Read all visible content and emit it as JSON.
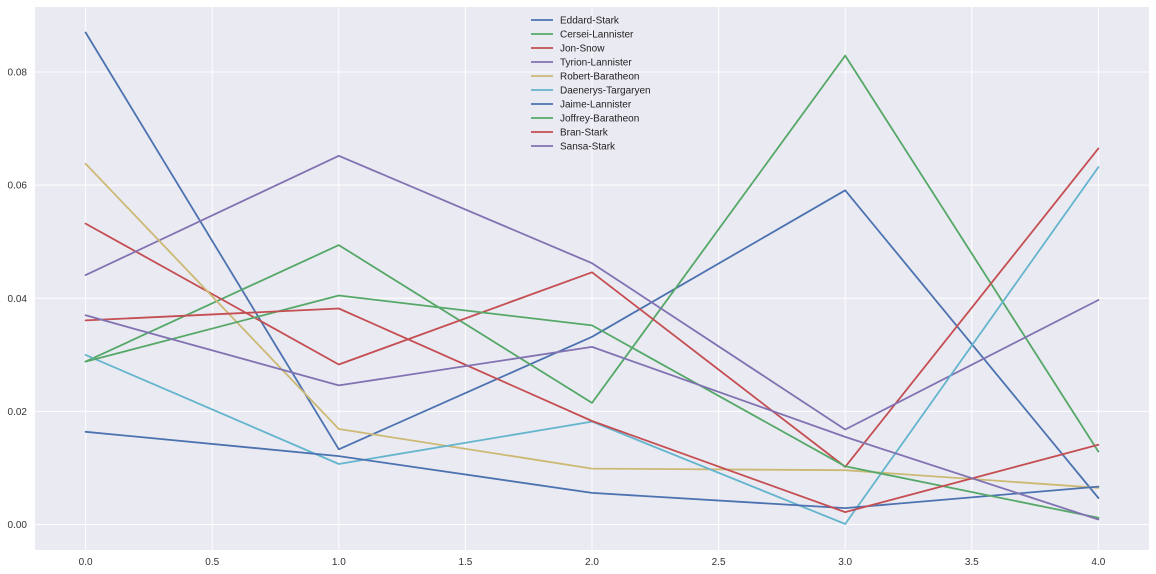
{
  "chart_data": {
    "type": "line",
    "title": "",
    "xlabel": "",
    "ylabel": "",
    "xlim": [
      -0.2,
      4.2
    ],
    "ylim": [
      -0.0045,
      0.0915
    ],
    "x": [
      0,
      1,
      2,
      3,
      4
    ],
    "x_ticks": [
      0.0,
      0.5,
      1.0,
      1.5,
      2.0,
      2.5,
      3.0,
      3.5,
      4.0
    ],
    "x_tick_labels": [
      "0.0",
      "0.5",
      "1.0",
      "1.5",
      "2.0",
      "2.5",
      "3.0",
      "3.5",
      "4.0"
    ],
    "y_ticks": [
      0.0,
      0.02,
      0.04,
      0.06,
      0.08
    ],
    "y_tick_labels": [
      "0.00",
      "0.02",
      "0.04",
      "0.06",
      "0.08"
    ],
    "grid": true,
    "legend_position": "top-center",
    "background_color": "#eaeaf2",
    "grid_color": "#ffffff",
    "series": [
      {
        "name": "Eddard-Stark",
        "color": "#4c72b0",
        "values": [
          0.087,
          0.0133,
          0.0332,
          0.0591,
          0.0047
        ]
      },
      {
        "name": "Cersei-Lannister",
        "color": "#55a868",
        "values": [
          0.0288,
          0.0494,
          0.0215,
          0.0829,
          0.0129
        ]
      },
      {
        "name": "Jon-Snow",
        "color": "#c44e52",
        "values": [
          0.0532,
          0.0283,
          0.0446,
          0.0102,
          0.0665
        ]
      },
      {
        "name": "Tyrion-Lannister",
        "color": "#8172b2",
        "values": [
          0.0441,
          0.0652,
          0.0462,
          0.0168,
          0.0397
        ]
      },
      {
        "name": "Robert-Baratheon",
        "color": "#ccb974",
        "values": [
          0.0638,
          0.0169,
          0.0099,
          0.0096,
          0.0065
        ]
      },
      {
        "name": "Daenerys-Targaryen",
        "color": "#64b5cd",
        "values": [
          0.03,
          0.0107,
          0.0182,
          0.0001,
          0.0632
        ]
      },
      {
        "name": "Jaime-Lannister",
        "color": "#4c72b0",
        "values": [
          0.0164,
          0.0121,
          0.0056,
          0.0029,
          0.0067
        ]
      },
      {
        "name": "Joffrey-Baratheon",
        "color": "#55a868",
        "values": [
          0.0288,
          0.0405,
          0.0352,
          0.0103,
          0.0012
        ]
      },
      {
        "name": "Bran-Stark",
        "color": "#c44e52",
        "values": [
          0.0361,
          0.0382,
          0.0183,
          0.0022,
          0.0141
        ]
      },
      {
        "name": "Sansa-Stark",
        "color": "#8172b2",
        "values": [
          0.037,
          0.0246,
          0.0314,
          0.0155,
          0.0009
        ]
      }
    ]
  }
}
